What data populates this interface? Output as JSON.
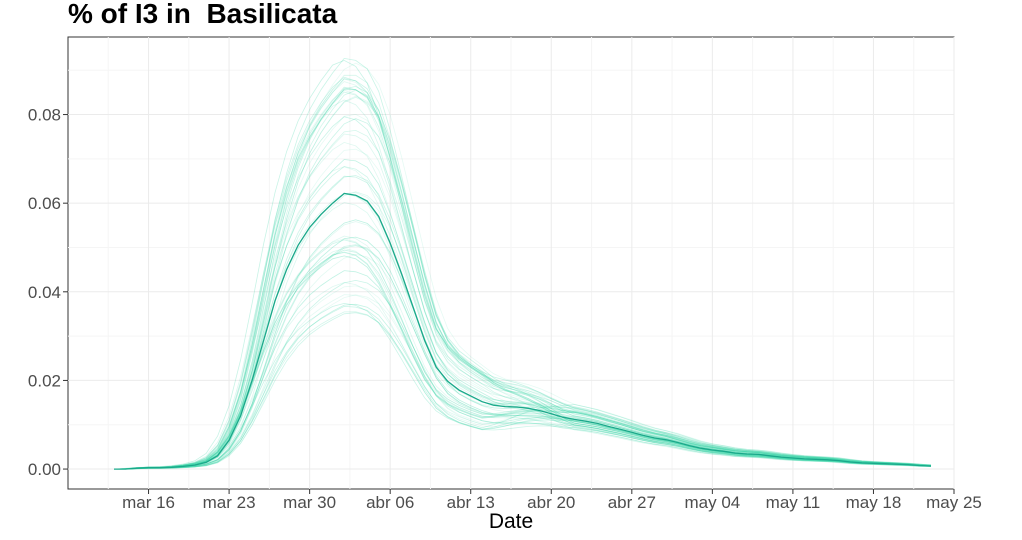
{
  "chart_data": {
    "type": "line",
    "title": "% of I3 in  Basilicata",
    "xlabel": "Date",
    "ylabel": "",
    "x_start": "2020-03-13",
    "x_end": "2020-05-23",
    "xlim": [
      "2020-03-09",
      "2020-05-25"
    ],
    "ylim": [
      -0.0045,
      0.0975
    ],
    "x_ticks": [
      {
        "date": "2020-03-16",
        "label": "mar 16"
      },
      {
        "date": "2020-03-23",
        "label": "mar 23"
      },
      {
        "date": "2020-03-30",
        "label": "mar 30"
      },
      {
        "date": "2020-04-06",
        "label": "abr 06"
      },
      {
        "date": "2020-04-13",
        "label": "abr 13"
      },
      {
        "date": "2020-04-20",
        "label": "abr 20"
      },
      {
        "date": "2020-04-27",
        "label": "abr 27"
      },
      {
        "date": "2020-05-04",
        "label": "may 04"
      },
      {
        "date": "2020-05-11",
        "label": "may 11"
      },
      {
        "date": "2020-05-18",
        "label": "may 18"
      },
      {
        "date": "2020-05-25",
        "label": "may 25"
      }
    ],
    "y_ticks": [
      {
        "value": 0.0,
        "label": "0.00"
      },
      {
        "value": 0.02,
        "label": "0.02"
      },
      {
        "value": 0.04,
        "label": "0.04"
      },
      {
        "value": 0.06,
        "label": "0.06"
      },
      {
        "value": 0.08,
        "label": "0.08"
      }
    ],
    "grid": true,
    "series": [
      {
        "role": "mean",
        "color": "#1aa88a",
        "values": [
          0.0,
          0.0,
          0.0002,
          0.0003,
          0.0003,
          0.0004,
          0.0006,
          0.0009,
          0.0015,
          0.003,
          0.0065,
          0.012,
          0.02,
          0.029,
          0.038,
          0.045,
          0.0505,
          0.0545,
          0.0575,
          0.06,
          0.0622,
          0.0618,
          0.0605,
          0.057,
          0.051,
          0.044,
          0.0365,
          0.029,
          0.023,
          0.0198,
          0.0178,
          0.0165,
          0.0152,
          0.0144,
          0.0141,
          0.014,
          0.0137,
          0.0132,
          0.0125,
          0.0117,
          0.0112,
          0.0108,
          0.0103,
          0.0096,
          0.009,
          0.0083,
          0.0076,
          0.007,
          0.0066,
          0.006,
          0.0053,
          0.0047,
          0.0043,
          0.004,
          0.0036,
          0.0034,
          0.0033,
          0.003,
          0.0027,
          0.0025,
          0.0023,
          0.0022,
          0.0021,
          0.0019,
          0.0016,
          0.0014,
          0.0013,
          0.0012,
          0.0011,
          0.001,
          0.0008,
          0.0007
        ]
      }
    ],
    "ensemble": {
      "role": "simulations",
      "color": "#40d6aa",
      "count": 60,
      "peak_min": 0.035,
      "peak_max": 0.093
    }
  }
}
